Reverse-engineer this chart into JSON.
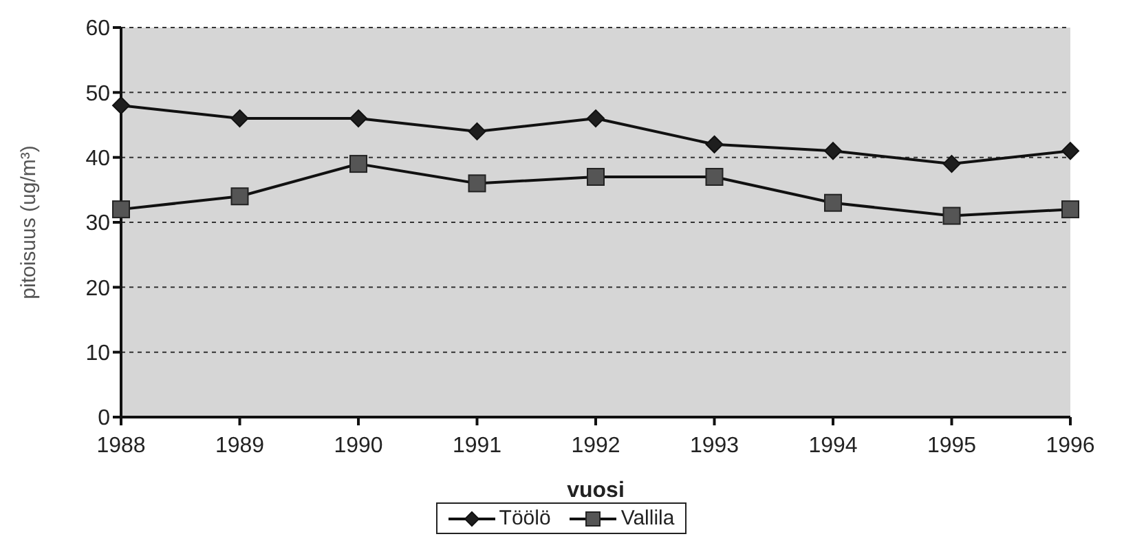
{
  "chart_data": {
    "type": "line",
    "xlabel": "vuosi",
    "ylabel": "pitoisuus (ug/m³)",
    "categories": [
      "1988",
      "1989",
      "1990",
      "1991",
      "1992",
      "1993",
      "1994",
      "1995",
      "1996"
    ],
    "series": [
      {
        "name": "Töölö",
        "color": "#1e1e1e",
        "marker": "diamond",
        "values": [
          48,
          46,
          46,
          44,
          46,
          42,
          41,
          39,
          41
        ]
      },
      {
        "name": "Vallila",
        "color": "#555555",
        "marker": "square",
        "values": [
          32,
          34,
          39,
          36,
          37,
          37,
          33,
          31,
          32
        ]
      }
    ],
    "ylim": [
      0,
      60
    ],
    "yticks": [
      0,
      10,
      20,
      30,
      40,
      50,
      60
    ],
    "grid": "y",
    "legend": "bottom",
    "line_style": "solid"
  }
}
